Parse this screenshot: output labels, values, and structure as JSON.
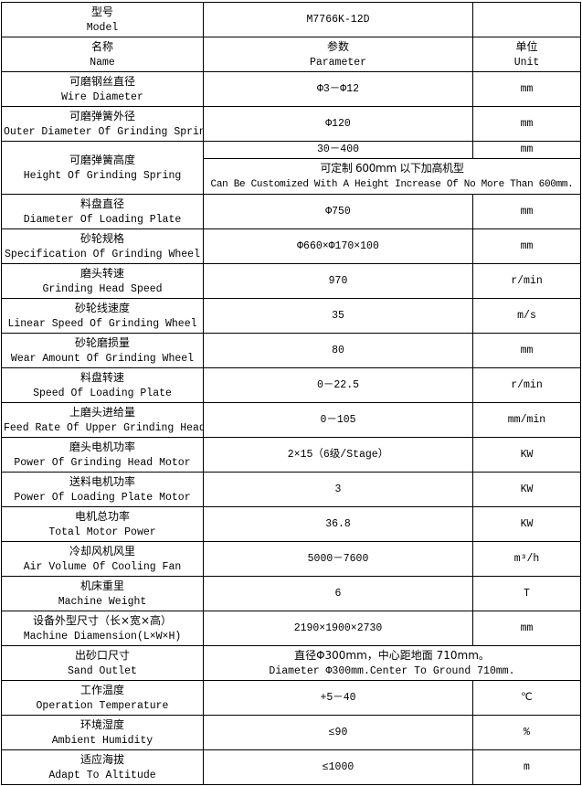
{
  "model": {
    "zh": "型号",
    "en": "Model",
    "value": "M7766K-12D"
  },
  "header": {
    "name_zh": "名称",
    "name_en": "Name",
    "param_zh": "参数",
    "param_en": "Parameter",
    "unit_zh": "单位",
    "unit_en": "Unit"
  },
  "rows_before": [
    {
      "zh": "可磨钢丝直径",
      "en": "Wire Diameter",
      "value": "Φ3－Φ12",
      "unit": "mm"
    },
    {
      "zh": "可磨弹簧外径",
      "en": "Outer Diameter Of Grinding Spring",
      "value": "Φ120",
      "unit": "mm"
    }
  ],
  "height_row": {
    "zh": "可磨弹簧高度",
    "en": "Height Of Grinding Spring",
    "value": "30－400",
    "unit": "mm",
    "note_zh": "可定制 600mm 以下加高机型",
    "note_en": "Can Be Customized With A Height Increase Of No More Than 600mm."
  },
  "rows": [
    {
      "zh": "料盘直径",
      "en": "Diameter Of Loading Plate",
      "value": "Φ750",
      "unit": "mm"
    },
    {
      "zh": "砂轮规格",
      "en": "Specification Of Grinding Wheel",
      "value": "Φ660×Φ170×100",
      "unit": "mm"
    },
    {
      "zh": "磨头转速",
      "en": "Grinding Head Speed",
      "value": "970",
      "unit": "r/min"
    },
    {
      "zh": "砂轮线速度",
      "en": "Linear Speed Of Grinding Wheel",
      "value": "35",
      "unit": "m/s"
    },
    {
      "zh": "砂轮磨损量",
      "en": "Wear Amount Of Grinding Wheel",
      "value": "80",
      "unit": "mm"
    },
    {
      "zh": "料盘转速",
      "en": "Speed Of Loading Plate",
      "value": "0－22.5",
      "unit": "r/min"
    },
    {
      "zh": "上磨头进给量",
      "en": "Feed Rate Of Upper Grinding Head",
      "value": "0－105",
      "unit": "mm/min"
    },
    {
      "zh": "磨头电机功率",
      "en": "Power Of Grinding Head Motor",
      "value": "2×15（6级/Stage）",
      "unit": "KW"
    },
    {
      "zh": "送料电机功率",
      "en": "Power Of Loading Plate Motor",
      "value": "3",
      "unit": "KW"
    },
    {
      "zh": "电机总功率",
      "en": "Total Motor Power",
      "value": "36.8",
      "unit": "KW"
    },
    {
      "zh": "冷却风机风里",
      "en": "Air Volume Of Cooling Fan",
      "value": "5000－7600",
      "unit": "m³/h"
    },
    {
      "zh": "机床重里",
      "en": "Machine Weight",
      "value": "6",
      "unit": "T"
    },
    {
      "zh": "设备外型尺寸（长×宽×高）",
      "en": "Machine Diamension(L×W×H)",
      "value": "2190×1900×2730",
      "unit": "mm"
    }
  ],
  "sand_outlet": {
    "zh": "出砂口尺寸",
    "en": "Sand Outlet",
    "value_zh": "直径Φ300mm，中心距地面 710mm。",
    "value_en": "Diameter Φ300mm.Center To Ground 710mm."
  },
  "rows_after": [
    {
      "zh": "工作温度",
      "en": "Operation Temperature",
      "value": "+5－40",
      "unit": "℃"
    },
    {
      "zh": "环境湿度",
      "en": "Ambient Humidity",
      "value": "≤90",
      "unit": "%"
    },
    {
      "zh": "适应海拔",
      "en": "Adapt To Altitude",
      "value": "≤1000",
      "unit": "m"
    }
  ]
}
